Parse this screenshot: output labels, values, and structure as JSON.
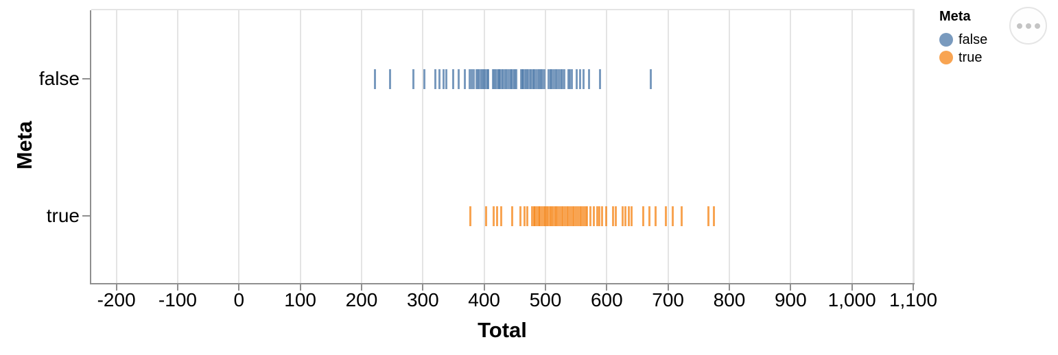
{
  "figure": {
    "x_axis": {
      "title": "Total",
      "tick_labels": [
        "-200",
        "-100",
        "0",
        "100",
        "200",
        "300",
        "400",
        "500",
        "600",
        "700",
        "800",
        "900",
        "1,000",
        "1,100"
      ]
    },
    "y_axis": {
      "title": "Meta",
      "categories": [
        "false",
        "true"
      ]
    },
    "legend": {
      "title": "Meta",
      "items": [
        {
          "label": "false",
          "color": "#4c78a8"
        },
        {
          "label": "true",
          "color": "#f58518"
        }
      ]
    },
    "actions_button": {
      "icon": "ellipsis-icon"
    }
  },
  "chart_data": {
    "type": "tick-strip",
    "orientation": "horizontal",
    "title": "",
    "xlabel": "Total",
    "ylabel": "Meta",
    "xlim": [
      -241,
      1100
    ],
    "grid": true,
    "legend_position": "top-right",
    "x_ticks": [
      -200,
      -100,
      0,
      100,
      200,
      300,
      400,
      500,
      600,
      700,
      800,
      900,
      1000,
      1100
    ],
    "categories": [
      "false",
      "true"
    ],
    "mark_opacity": 0.75,
    "series": [
      {
        "name": "false",
        "color": "#4c78a8",
        "values": [
          222,
          247,
          284,
          303,
          320,
          327,
          334,
          338,
          350,
          358,
          369,
          376,
          380,
          383,
          387,
          390,
          392,
          395,
          398,
          400,
          402,
          405,
          407,
          414,
          417,
          419,
          422,
          424,
          426,
          429,
          431,
          434,
          437,
          440,
          443,
          445,
          448,
          450,
          452,
          460,
          462,
          464,
          467,
          469,
          472,
          475,
          477,
          480,
          482,
          485,
          488,
          490,
          493,
          495,
          498,
          505,
          508,
          510,
          513,
          516,
          519,
          522,
          525,
          528,
          531,
          537,
          540,
          543,
          551,
          556,
          562,
          571,
          589,
          672
        ]
      },
      {
        "name": "true",
        "color": "#f58518",
        "values": [
          377,
          403,
          415,
          421,
          428,
          446,
          459,
          466,
          470,
          478,
          481,
          483,
          486,
          489,
          491,
          494,
          497,
          499,
          502,
          504,
          507,
          509,
          512,
          515,
          517,
          520,
          523,
          526,
          529,
          532,
          535,
          538,
          541,
          544,
          547,
          550,
          553,
          556,
          559,
          562,
          565,
          568,
          573,
          579,
          585,
          588,
          592,
          599,
          610,
          615,
          626,
          630,
          636,
          640,
          659,
          670,
          680,
          696,
          708,
          722,
          766,
          775
        ]
      }
    ]
  },
  "colors": {
    "grid": "#e4e4e4",
    "axis": "#8f8f8f",
    "text": "#000000",
    "series_false": "#4c78a8",
    "series_true": "#f58518"
  }
}
